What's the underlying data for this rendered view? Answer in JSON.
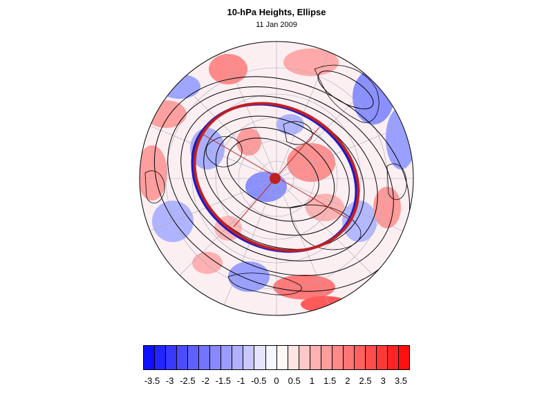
{
  "title": "10-hPa Heights, Ellipse",
  "subtitle": "11 Jan 2009",
  "colorbar": {
    "colors": [
      "#1010ff",
      "#2424ff",
      "#3838ff",
      "#4c4cff",
      "#6060ff",
      "#7474ff",
      "#8888ff",
      "#9c9cff",
      "#b0b0ff",
      "#c8c8ff",
      "#e4e4ff",
      "#f6f6ff",
      "#fff6f6",
      "#ffe4e4",
      "#ffc8c8",
      "#ffb0b0",
      "#ff9c9c",
      "#ff8888",
      "#ff7474",
      "#ff6060",
      "#ff4c4c",
      "#ff3838",
      "#ff2424",
      "#ff1010"
    ],
    "tick_labels": [
      "-3.5",
      "-3",
      "-2.5",
      "-2",
      "-1.5",
      "-1",
      "-0.5",
      "0",
      "0.5",
      "1",
      "1.5",
      "2",
      "2.5",
      "3",
      "3.5"
    ]
  },
  "map": {
    "projection": "north polar stereographic",
    "ellipse_colors": {
      "blue": "#1a1ad0",
      "red": "#c02020",
      "center": "#c02020"
    }
  }
}
